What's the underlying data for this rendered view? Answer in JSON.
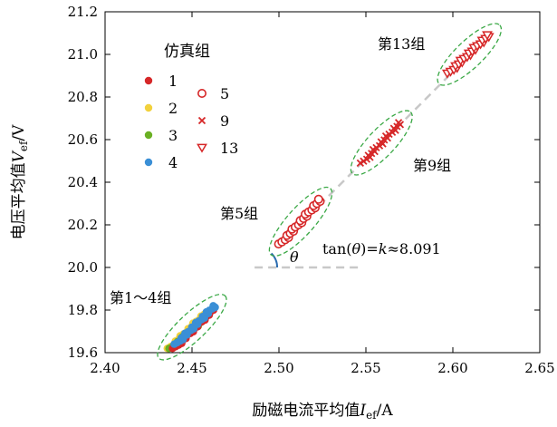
{
  "chart_data": {
    "type": "scatter",
    "xlabel": "励磁电流平均值",
    "xlabel_var": "I",
    "xlabel_sub": "ef",
    "xlabel_unit": "/A",
    "ylabel": "电压平均值",
    "ylabel_var": "V",
    "ylabel_sub": "ef",
    "ylabel_unit": "/V",
    "xlim": [
      2.4,
      2.65
    ],
    "ylim": [
      19.6,
      21.2
    ],
    "x_ticks": [
      "2.40",
      "2.45",
      "2.50",
      "2.55",
      "2.60",
      "2.65"
    ],
    "y_ticks": [
      "19.6",
      "19.8",
      "20.0",
      "20.2",
      "20.4",
      "20.6",
      "20.8",
      "21.0",
      "21.2"
    ],
    "grid": false,
    "legend": {
      "title": "仿真组",
      "placement": "top-left",
      "col1": [
        {
          "label": "1",
          "marker": "filled-circle",
          "color": "#d62728"
        },
        {
          "label": "2",
          "marker": "filled-circle",
          "color": "#f2d13c"
        },
        {
          "label": "3",
          "marker": "filled-circle",
          "color": "#6ab023"
        },
        {
          "label": "4",
          "marker": "filled-circle",
          "color": "#3a8fd6"
        }
      ],
      "col2": [
        {
          "label": "5",
          "marker": "open-circle",
          "color": "#d62728"
        },
        {
          "label": "9",
          "marker": "x",
          "color": "#d62728"
        },
        {
          "label": "13",
          "marker": "open-triangle",
          "color": "#d62728"
        }
      ]
    },
    "series": [
      {
        "name": "1",
        "marker": "filled-circle",
        "color": "#d62728",
        "x_range": [
          2.44,
          2.462
        ],
        "y_range": [
          19.62,
          19.8
        ],
        "n": 24
      },
      {
        "name": "2",
        "marker": "filled-circle",
        "color": "#f2d13c",
        "x_range": [
          2.437,
          2.457
        ],
        "y_range": [
          19.62,
          19.78
        ],
        "n": 20
      },
      {
        "name": "3",
        "marker": "filled-circle",
        "color": "#6ab023",
        "x_range": [
          2.438,
          2.455
        ],
        "y_range": [
          19.62,
          19.74
        ],
        "n": 16
      },
      {
        "name": "4",
        "marker": "filled-circle",
        "color": "#3a8fd6",
        "x_range": [
          2.441,
          2.463
        ],
        "y_range": [
          19.64,
          19.82
        ],
        "n": 26
      },
      {
        "name": "5",
        "marker": "open-circle",
        "color": "#d62728",
        "x_range": [
          2.501,
          2.524
        ],
        "y_range": [
          20.11,
          20.32
        ],
        "n": 22
      },
      {
        "name": "9",
        "marker": "x",
        "color": "#d62728",
        "x_range": [
          2.548,
          2.57
        ],
        "y_range": [
          20.49,
          20.68
        ],
        "n": 22
      },
      {
        "name": "13",
        "marker": "open-triangle",
        "color": "#d62728",
        "x_range": [
          2.598,
          2.621
        ],
        "y_range": [
          20.91,
          21.09
        ],
        "n": 22
      }
    ],
    "annotations": {
      "group_1_4": "第1～4组",
      "group_5": "第5组",
      "group_9": "第9组",
      "group_13": "第13组",
      "theta": "θ",
      "tan_prefix": "tan(",
      "tan_theta": "θ",
      "tan_mid": ")=",
      "tan_k": "k",
      "tan_value": "≈8.091"
    },
    "colors": {
      "ellipse": "#3aa845",
      "trend_line": "#c8c8c8",
      "angle_arc": "#2b6cb0"
    }
  }
}
